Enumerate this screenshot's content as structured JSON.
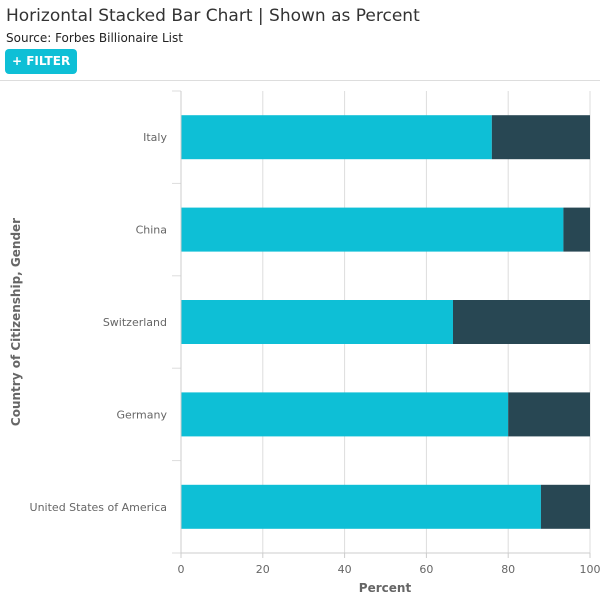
{
  "header": {
    "title": "Horizontal Stacked Bar Chart | Shown as Percent",
    "source": "Source: Forbes Billionaire List",
    "filter_label": "+ FILTER"
  },
  "colors": {
    "series_a": "#0ebfd6",
    "series_b": "#284753",
    "grid": "#dddddd",
    "axis_text": "#666666"
  },
  "chart_data": {
    "type": "bar",
    "orientation": "horizontal",
    "stacked": true,
    "normalized": "percent",
    "categories": [
      "Italy",
      "China",
      "Switzerland",
      "Germany",
      "United States of America"
    ],
    "series": [
      {
        "values": [
          76,
          93.5,
          66.5,
          80,
          88
        ]
      },
      {
        "values": [
          24,
          6.5,
          33.5,
          20,
          12
        ]
      }
    ],
    "xlabel": "Percent",
    "ylabel": "Country of Citizenship, Gender",
    "xlim": [
      0,
      100
    ],
    "xticks": [
      "0",
      "20",
      "40",
      "60",
      "80",
      "100"
    ],
    "grid": true,
    "legend": "none"
  }
}
